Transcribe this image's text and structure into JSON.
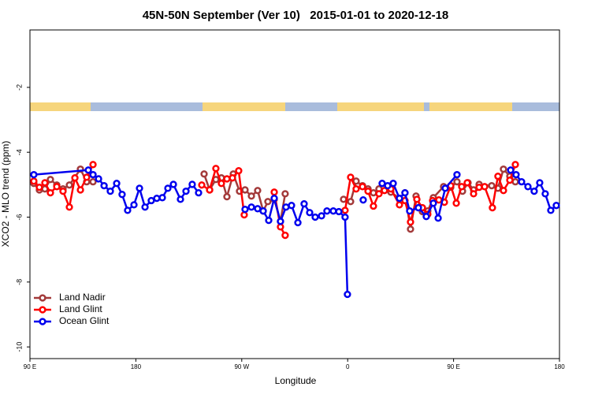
{
  "chart_data": {
    "type": "line",
    "title": "45N-50N September (Ver 10)   2015-01-01 to 2020-12-18",
    "x_label": "Longitude",
    "y_label": "XCO2 - MLO trend (ppm)",
    "xlim": [
      90,
      540
    ],
    "ylim": [
      -10.36,
      -0.23
    ],
    "xticks": [
      {
        "value": 90,
        "label": "90 E"
      },
      180,
      {
        "value": 270,
        "label": "90 W"
      },
      {
        "value": 360,
        "label": "0"
      },
      {
        "value": 450,
        "label": "90 E"
      },
      {
        "value": 540,
        "label": "180"
      }
    ],
    "yticks": [
      -10,
      -8,
      -6,
      -4,
      -2
    ],
    "grid": false,
    "legend": "bottom-left",
    "series": [
      {
        "name": "Land Nadir",
        "color": "#a33a3a",
        "x": [
          93.3,
          98.0,
          102.7,
          107.4,
          112.8,
          118.1,
          123.5,
          132.9,
          138.2,
          143.6,
          null,
          238.0,
          242.7,
          248.0,
          252.7,
          257.4,
          262.8,
          268.1,
          272.8,
          278.2,
          283.5,
          288.2,
          292.2,
          297.6,
          302.9,
          306.9,
          null,
          356.5,
          362.5,
          367.2,
          372.6,
          377.3,
          381.9,
          386.6,
          396.7,
          404.0,
          408.7,
          413.4,
          418.1,
          423.5,
          428.1,
          432.8,
          441.5,
          447.6,
          452.9,
          457.6,
          462.3,
          467.0,
          471.7,
          482.4,
          487.7,
          492.4,
          497.8,
          502.5
        ],
        "values": [
          -4.96,
          -5.16,
          -5.13,
          -4.84,
          -5.01,
          -5.13,
          -5.01,
          -4.52,
          -4.91,
          -4.91,
          null,
          -4.67,
          -5.16,
          -4.84,
          -4.79,
          -5.37,
          -4.67,
          -5.2,
          -5.16,
          -5.35,
          -5.18,
          -5.81,
          -5.52,
          -5.45,
          -6.13,
          -5.28,
          null,
          -5.45,
          -5.52,
          -4.89,
          -5.03,
          -5.13,
          -5.25,
          -5.13,
          -5.23,
          -5.42,
          -5.25,
          -6.37,
          -5.35,
          -5.83,
          -5.81,
          -5.4,
          -5.06,
          -5.08,
          -4.91,
          -5.2,
          -4.94,
          -5.16,
          -4.99,
          -5.03,
          -5.11,
          -4.52,
          -4.74,
          -4.91
        ]
      },
      {
        "name": "Land Glint",
        "color": "#ff0000",
        "x": [
          93.3,
          98.0,
          102.7,
          107.4,
          112.8,
          118.1,
          123.5,
          128.2,
          132.9,
          138.2,
          143.6,
          null,
          236.0,
          242.7,
          248.0,
          252.7,
          257.4,
          262.1,
          267.4,
          272.1,
          null,
          297.6,
          302.9,
          306.9,
          null,
          357.8,
          362.5,
          367.2,
          372.6,
          377.3,
          381.9,
          386.6,
          391.3,
          396.7,
          404.0,
          408.7,
          413.4,
          418.8,
          423.5,
          428.1,
          432.2,
          437.5,
          442.2,
          447.6,
          452.3,
          456.9,
          461.6,
          467.0,
          471.7,
          476.4,
          483.0,
          487.7,
          492.4,
          497.8,
          502.5
        ],
        "values": [
          -4.89,
          -5.08,
          -4.94,
          -5.25,
          -5.06,
          -5.2,
          -5.69,
          -4.79,
          -5.16,
          -4.77,
          -4.38,
          null,
          -5.01,
          -5.16,
          -4.5,
          -4.96,
          -4.82,
          -4.79,
          -4.57,
          -5.93,
          null,
          -5.23,
          -6.3,
          -6.56,
          null,
          -5.79,
          -4.77,
          -5.13,
          -5.06,
          -5.2,
          -5.66,
          -5.28,
          -5.18,
          -5.13,
          -5.62,
          -5.49,
          -6.15,
          -5.45,
          -5.71,
          -5.91,
          -5.49,
          -5.47,
          -5.54,
          -5.03,
          -5.57,
          -5.06,
          -4.94,
          -5.28,
          -5.08,
          -5.06,
          -5.71,
          -4.74,
          -5.18,
          -4.86,
          -4.38
        ]
      },
      {
        "name": "Ocean Glint",
        "color": "#0000ee",
        "x": [
          93.3,
          139.6,
          143.6,
          148.3,
          153.0,
          158.3,
          163.7,
          168.3,
          173.0,
          178.4,
          183.1,
          187.8,
          193.1,
          197.8,
          202.5,
          207.2,
          211.9,
          217.9,
          222.6,
          227.9,
          233.3,
          null,
          272.8,
          278.2,
          283.5,
          288.2,
          292.9,
          297.6,
          302.9,
          307.6,
          312.3,
          317.7,
          323.0,
          327.7,
          332.4,
          337.8,
          342.4,
          347.8,
          352.5,
          357.8,
          359.8,
          null,
          373.2,
          null,
          389.3,
          394.0,
          398.7,
          404.0,
          408.7,
          412.7,
          420.1,
          426.8,
          432.8,
          436.9,
          442.9,
          452.9,
          null,
          498.5,
          503.1,
          507.8,
          513.2,
          518.5,
          523.2,
          527.9,
          532.6,
          537.3
        ],
        "values": [
          -4.69,
          -4.55,
          -4.69,
          -4.82,
          -5.03,
          -5.2,
          -4.96,
          -5.3,
          -5.79,
          -5.62,
          -5.11,
          -5.69,
          -5.49,
          -5.42,
          -5.4,
          -5.11,
          -4.99,
          -5.45,
          -5.2,
          -4.99,
          -5.25,
          null,
          -5.76,
          -5.69,
          -5.74,
          -5.81,
          -6.1,
          -5.42,
          -6.13,
          -5.69,
          -5.64,
          -6.17,
          -5.59,
          -5.86,
          -6.0,
          -5.96,
          -5.81,
          -5.81,
          -5.83,
          -6.0,
          -8.38,
          null,
          -5.47,
          null,
          -4.96,
          -5.03,
          -4.96,
          -5.42,
          -5.25,
          -5.81,
          -5.71,
          -5.98,
          -5.57,
          -6.03,
          -5.11,
          -4.69,
          null,
          -4.55,
          -4.69,
          -4.91,
          -5.06,
          -5.2,
          -4.94,
          -5.28,
          -5.79,
          -5.64
        ]
      }
    ]
  }
}
